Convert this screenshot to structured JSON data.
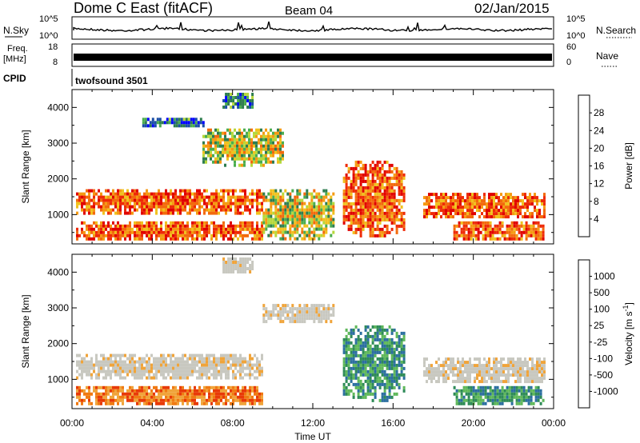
{
  "header": {
    "station": "Dome C East (fitACF)",
    "beam": "Beam 04",
    "date": "02/Jan/2015"
  },
  "status_panels": {
    "nsky": {
      "label": "N.Sky",
      "ticks": [
        "10^5",
        "10^0"
      ]
    },
    "nsearch": {
      "label": "N.Search",
      "ticks": [
        "10^5",
        "10^0"
      ]
    },
    "freq": {
      "label_line1": "Freq.",
      "label_line2": "[MHz]",
      "ticks": [
        "18",
        "8"
      ]
    },
    "nave": {
      "label": "Nave",
      "ticks": [
        "60",
        "0"
      ]
    },
    "cpid": {
      "label": "CPID",
      "program": "twofsound 3501"
    }
  },
  "chart_data": [
    {
      "type": "heatmap",
      "title": "",
      "xlabel": "Time UT",
      "ylabel": "Slant Range [km]",
      "x_ticks": [
        "00:00",
        "04:00",
        "08:00",
        "12:00",
        "16:00",
        "20:00",
        "00:00"
      ],
      "y_ticks": [
        "1000",
        "2000",
        "3000",
        "4000"
      ],
      "ylim": [
        180,
        4500
      ],
      "xlim_hours": [
        0,
        24
      ],
      "colorbar": {
        "label": "Power [dB]",
        "ticks": [
          "4",
          "8",
          "12",
          "16",
          "20",
          "24",
          "28"
        ],
        "colors": [
          "#0000ff",
          "#1c4fa6",
          "#2e7d4f",
          "#4bae4f",
          "#b6d83b",
          "#f0c21e",
          "#f59a12",
          "#f36a0c",
          "#ee2a07",
          "#e00000"
        ]
      },
      "regions": [
        {
          "t": [
            0.2,
            9.5
          ],
          "r": [
            1000,
            1800
          ],
          "level": "high"
        },
        {
          "t": [
            0.2,
            9.5
          ],
          "r": [
            300,
            900
          ],
          "level": "high"
        },
        {
          "t": [
            13.5,
            16.5
          ],
          "r": [
            400,
            2600
          ],
          "level": "high"
        },
        {
          "t": [
            17.5,
            23.5
          ],
          "r": [
            900,
            1700
          ],
          "level": "high"
        },
        {
          "t": [
            19.0,
            23.5
          ],
          "r": [
            300,
            900
          ],
          "level": "high"
        },
        {
          "t": [
            9.5,
            13.0
          ],
          "r": [
            300,
            1800
          ],
          "level": "mid"
        },
        {
          "t": [
            6.5,
            10.5
          ],
          "r": [
            2400,
            3500
          ],
          "level": "mid"
        },
        {
          "t": [
            3.5,
            6.5
          ],
          "r": [
            3500,
            3800
          ],
          "level": "low"
        },
        {
          "t": [
            7.5,
            9.0
          ],
          "r": [
            4000,
            4500
          ],
          "level": "low"
        }
      ]
    },
    {
      "type": "heatmap",
      "title": "",
      "xlabel": "Time UT",
      "ylabel": "Slant Range [km]",
      "x_ticks": [
        "00:00",
        "04:00",
        "08:00",
        "12:00",
        "16:00",
        "20:00",
        "00:00"
      ],
      "y_ticks": [
        "1000",
        "2000",
        "3000",
        "4000"
      ],
      "ylim": [
        180,
        4500
      ],
      "xlim_hours": [
        0,
        24
      ],
      "colorbar": {
        "label": "Velocity [m s^-1]",
        "ticks": [
          "1000",
          "500",
          "100",
          "25",
          "-25",
          "-100",
          "-500",
          "-1000"
        ],
        "colors": [
          "#1a3aa8",
          "#2c6fa0",
          "#2e8b57",
          "#5fb85a",
          "#c8c8c0",
          "#f0a43a",
          "#f07a12",
          "#e83a08",
          "#d80000"
        ]
      },
      "regions": [
        {
          "t": [
            0.2,
            9.5
          ],
          "r": [
            1000,
            1800
          ],
          "level": "grey"
        },
        {
          "t": [
            0.2,
            9.5
          ],
          "r": [
            300,
            900
          ],
          "level": "away"
        },
        {
          "t": [
            13.5,
            16.5
          ],
          "r": [
            400,
            2600
          ],
          "level": "toward"
        },
        {
          "t": [
            17.5,
            23.5
          ],
          "r": [
            900,
            1700
          ],
          "level": "grey"
        },
        {
          "t": [
            19.0,
            23.5
          ],
          "r": [
            300,
            900
          ],
          "level": "toward"
        },
        {
          "t": [
            9.5,
            13.0
          ],
          "r": [
            2600,
            3200
          ],
          "level": "grey"
        },
        {
          "t": [
            7.5,
            9.0
          ],
          "r": [
            4000,
            4500
          ],
          "level": "grey"
        }
      ]
    }
  ]
}
